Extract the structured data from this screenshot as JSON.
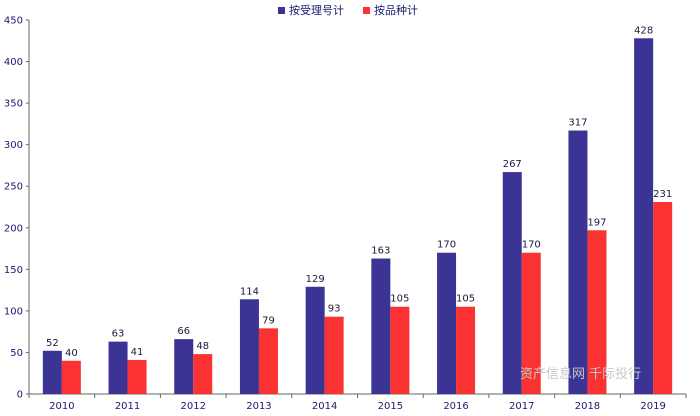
{
  "chart_data": {
    "type": "bar",
    "categories": [
      "2010",
      "2011",
      "2012",
      "2013",
      "2014",
      "2015",
      "2016",
      "2017",
      "2018",
      "2019"
    ],
    "series": [
      {
        "name": "按受理号计",
        "color": "#3b3494",
        "values": [
          52,
          63,
          66,
          114,
          129,
          163,
          170,
          267,
          317,
          428
        ]
      },
      {
        "name": "按品种计",
        "color": "#fa3232",
        "values": [
          40,
          41,
          48,
          79,
          93,
          105,
          105,
          170,
          197,
          231
        ]
      }
    ],
    "ylim": [
      0,
      450
    ],
    "yticks": [
      0,
      50,
      100,
      150,
      200,
      250,
      300,
      350,
      400,
      450
    ],
    "grid": false,
    "legend": "top-center",
    "title": "",
    "xlabel": "",
    "ylabel": ""
  },
  "watermark": "资产信息网 千际投行"
}
